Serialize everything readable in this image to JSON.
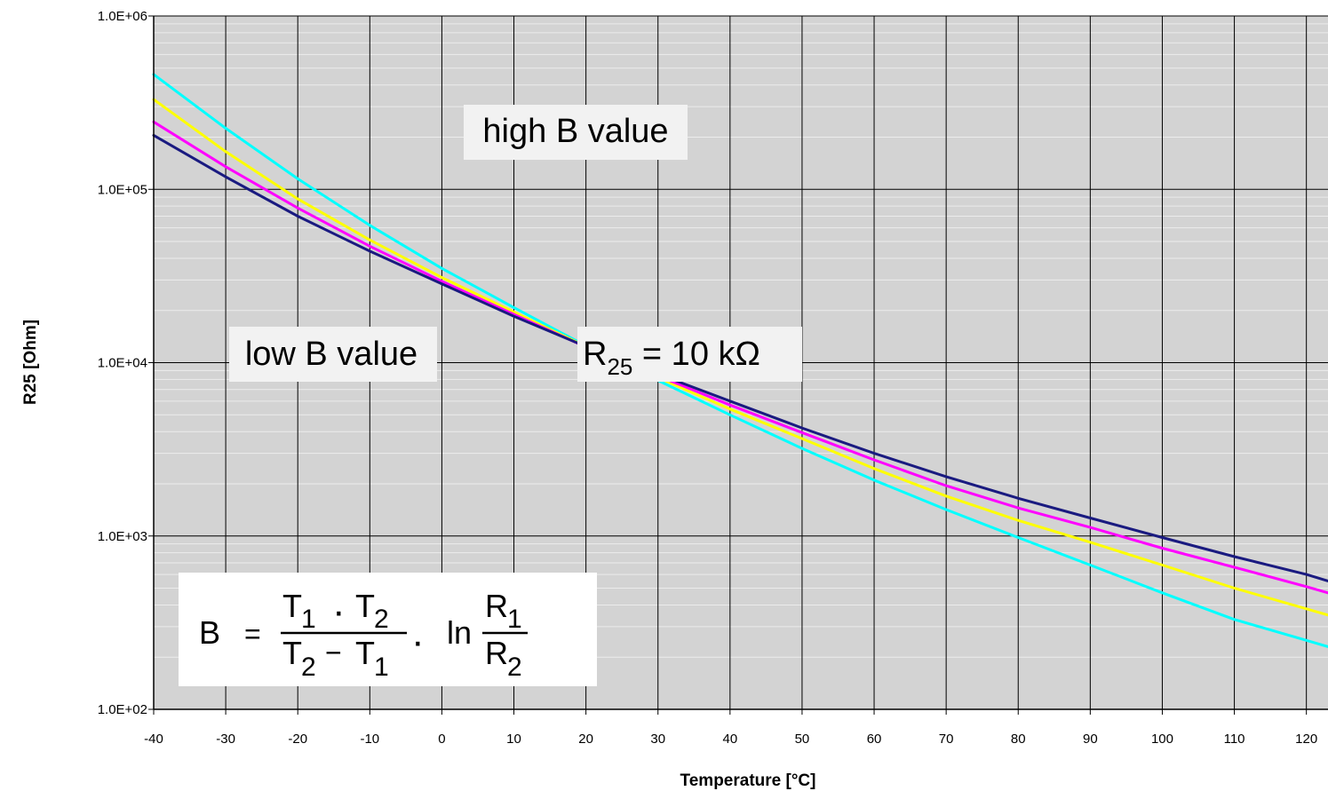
{
  "chart_data": {
    "type": "line",
    "xlabel": "Temperature [°C]",
    "ylabel": "R25 [Ohm]",
    "xlim": [
      -40,
      123
    ],
    "ylim": [
      100,
      1000000
    ],
    "yscale": "log",
    "grid": true,
    "x_tick_labels": [
      "-40",
      "-30",
      "-20",
      "-10",
      "0",
      "10",
      "20",
      "30",
      "40",
      "50",
      "60",
      "70",
      "80",
      "90",
      "100",
      "110",
      "120"
    ],
    "y_tick_labels": [
      "1.0E+02",
      "1.0E+03",
      "1.0E+04",
      "1.0E+05",
      "1.0E+06"
    ],
    "colors": {
      "plot_background": "#d3d3d3",
      "series": [
        "#1a1a80",
        "#ff00ff",
        "#ffff00",
        "#00ffff"
      ]
    },
    "x": [
      -40,
      -30,
      -20,
      -10,
      0,
      10,
      20,
      30,
      40,
      50,
      60,
      70,
      80,
      90,
      100,
      110,
      120,
      123
    ],
    "series": [
      {
        "values": [
          205000,
          118000,
          70000,
          44000,
          28500,
          18500,
          12400,
          8600,
          6000,
          4200,
          3000,
          2200,
          1650,
          1270,
          980,
          760,
          600,
          550
        ]
      },
      {
        "values": [
          245000,
          135000,
          78000,
          47000,
          29500,
          19000,
          12300,
          8400,
          5700,
          3950,
          2750,
          1950,
          1450,
          1120,
          850,
          660,
          510,
          470
        ]
      },
      {
        "values": [
          330000,
          165000,
          88000,
          51000,
          31000,
          19600,
          12400,
          8200,
          5400,
          3650,
          2450,
          1700,
          1230,
          920,
          680,
          500,
          380,
          350
        ]
      },
      {
        "values": [
          460000,
          225000,
          115000,
          62000,
          35000,
          20800,
          12500,
          7900,
          5000,
          3200,
          2100,
          1420,
          980,
          680,
          470,
          330,
          250,
          230
        ]
      }
    ],
    "annotations": {
      "high": "high B value",
      "low": "low B value",
      "r25_main": "R",
      "r25_sub": "25",
      "r25_rest": " = 10 kΩ"
    },
    "formula": {
      "lhs": "B",
      "eq": "=",
      "t1": "T",
      "t2": "T",
      "s1": "1",
      "s2": "2",
      "mul": "·",
      "minus": "−",
      "ln": "ln",
      "r": "R"
    }
  }
}
